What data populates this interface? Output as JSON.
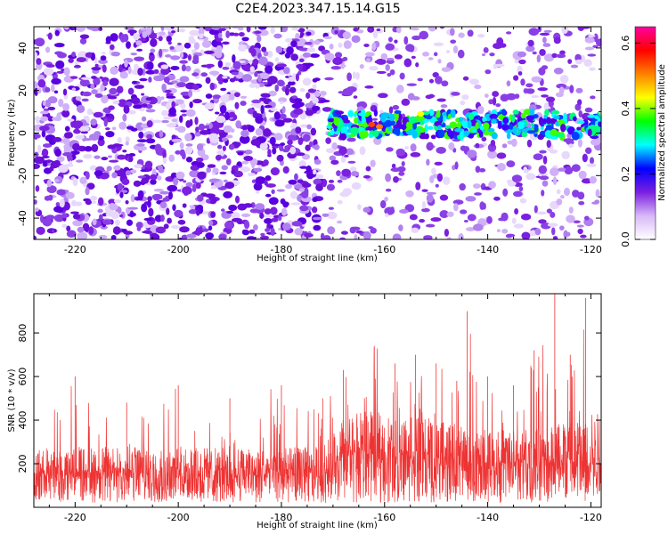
{
  "title": "C2E4.2023.347.15.14.G15",
  "chart_data": [
    {
      "type": "heatmap",
      "title": "",
      "xlabel": "Height of straight line (km)",
      "ylabel": "Frequency (Hz)",
      "xlim": [
        -228,
        -118
      ],
      "ylim": [
        -50,
        50
      ],
      "x_ticks": [
        -220,
        -200,
        -180,
        -160,
        -140,
        -120
      ],
      "y_ticks": [
        -40,
        -20,
        0,
        20,
        40
      ],
      "colorbar": {
        "label": "Normalized spectral amplitude",
        "range": [
          0,
          0.65
        ],
        "ticks": [
          0,
          0.2,
          0.4,
          0.6
        ],
        "colors": [
          "#ffffff",
          "#d8b8f8",
          "#7b1fe0",
          "#0000ff",
          "#00ffff",
          "#00ff00",
          "#ffff00",
          "#ff8000",
          "#ff0000",
          "#ff00a0"
        ]
      },
      "features": [
        {
          "label": "strong band",
          "x_start": -171,
          "x_end": -118,
          "frequency": 4,
          "half_width": 6
        }
      ],
      "grid": false
    },
    {
      "type": "line",
      "title": "",
      "xlabel": "Height of straight line (km)",
      "ylabel": "SNR (10 * v/v)",
      "xlim": [
        -228,
        -118
      ],
      "ylim": [
        0,
        980
      ],
      "x_ticks": [
        -220,
        -200,
        -180,
        -160,
        -140,
        -120
      ],
      "y_ticks": [
        200,
        400,
        600,
        800
      ],
      "series_color": "#ee3333",
      "envelope": [
        {
          "x": -228,
          "mean": 160,
          "peak": 430
        },
        {
          "x": -220,
          "mean": 160,
          "peak": 600
        },
        {
          "x": -210,
          "mean": 165,
          "peak": 480
        },
        {
          "x": -200,
          "mean": 165,
          "peak": 560
        },
        {
          "x": -190,
          "mean": 160,
          "peak": 500
        },
        {
          "x": -180,
          "mean": 160,
          "peak": 560
        },
        {
          "x": -172,
          "mean": 165,
          "peak": 500
        },
        {
          "x": -168,
          "mean": 240,
          "peak": 630
        },
        {
          "x": -162,
          "mean": 270,
          "peak": 740
        },
        {
          "x": -158,
          "mean": 240,
          "peak": 660
        },
        {
          "x": -154,
          "mean": 280,
          "peak": 700
        },
        {
          "x": -150,
          "mean": 230,
          "peak": 660
        },
        {
          "x": -146,
          "mean": 230,
          "peak": 580
        },
        {
          "x": -144,
          "mean": 200,
          "peak": 900
        },
        {
          "x": -140,
          "mean": 215,
          "peak": 600
        },
        {
          "x": -135,
          "mean": 210,
          "peak": 560
        },
        {
          "x": -131,
          "mean": 220,
          "peak": 720
        },
        {
          "x": -127,
          "mean": 230,
          "peak": 980
        },
        {
          "x": -124,
          "mean": 240,
          "peak": 700
        },
        {
          "x": -121,
          "mean": 250,
          "peak": 960
        },
        {
          "x": -118,
          "mean": 250,
          "peak": 620
        }
      ]
    }
  ]
}
